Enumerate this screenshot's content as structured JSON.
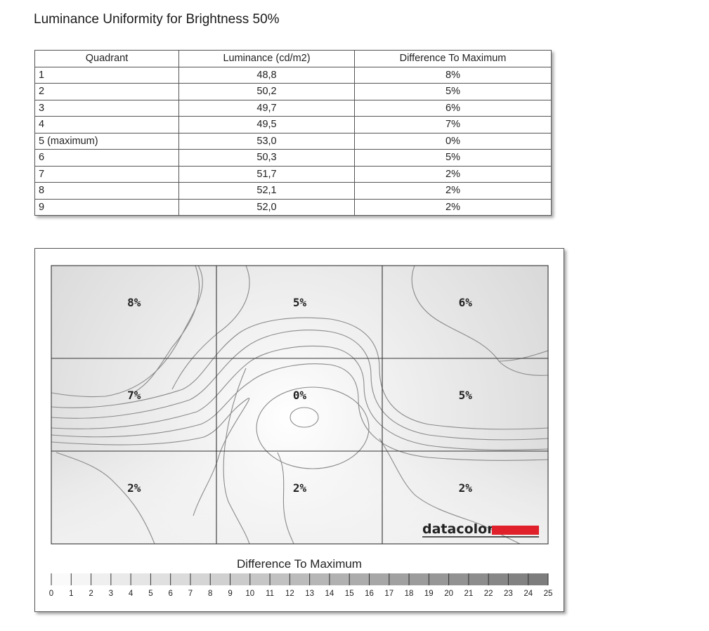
{
  "title": "Luminance Uniformity for Brightness 50%",
  "table": {
    "headers": [
      "Quadrant",
      "Luminance (cd/m2)",
      "Difference To Maximum"
    ],
    "rows": [
      [
        "1",
        "48,8",
        "8%"
      ],
      [
        "2",
        "50,2",
        "5%"
      ],
      [
        "3",
        "49,7",
        "6%"
      ],
      [
        "4",
        "49,5",
        "7%"
      ],
      [
        "5 (maximum)",
        "53,0",
        "0%"
      ],
      [
        "6",
        "50,3",
        "5%"
      ],
      [
        "7",
        "51,7",
        "2%"
      ],
      [
        "8",
        "52,1",
        "2%"
      ],
      [
        "9",
        "52,0",
        "2%"
      ]
    ]
  },
  "chart_data": {
    "type": "heatmap",
    "grid": {
      "rows": 3,
      "cols": 3
    },
    "cells": [
      {
        "row": 0,
        "col": 0,
        "label": "8%",
        "value": 8
      },
      {
        "row": 0,
        "col": 1,
        "label": "5%",
        "value": 5
      },
      {
        "row": 0,
        "col": 2,
        "label": "6%",
        "value": 6
      },
      {
        "row": 1,
        "col": 0,
        "label": "7%",
        "value": 7
      },
      {
        "row": 1,
        "col": 1,
        "label": "0%",
        "value": 0
      },
      {
        "row": 1,
        "col": 2,
        "label": "5%",
        "value": 5
      },
      {
        "row": 2,
        "col": 0,
        "label": "2%",
        "value": 2
      },
      {
        "row": 2,
        "col": 1,
        "label": "2%",
        "value": 2
      },
      {
        "row": 2,
        "col": 2,
        "label": "2%",
        "value": 2
      }
    ],
    "scale": {
      "title": "Difference To Maximum",
      "min": 0,
      "max": 25,
      "ticks": [
        0,
        1,
        2,
        3,
        4,
        5,
        6,
        7,
        8,
        9,
        10,
        11,
        12,
        13,
        14,
        15,
        16,
        17,
        18,
        19,
        20,
        21,
        22,
        23,
        24,
        25
      ]
    },
    "logo": "datacolor",
    "colors": {
      "logo_bar": "#e0202a",
      "grid_line": "#333333",
      "contour": "#8a8a8a"
    }
  }
}
